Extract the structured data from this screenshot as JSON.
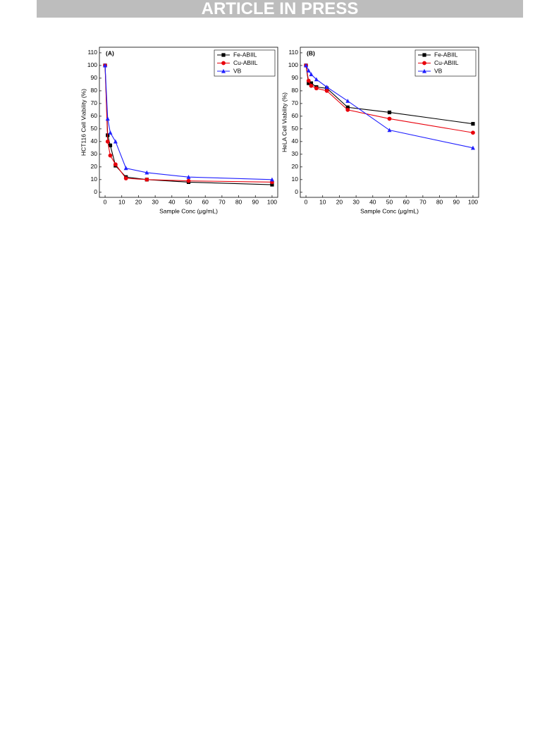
{
  "header": {
    "banner": "ARTICLE IN PRESS"
  },
  "chart_data": [
    {
      "type": "line",
      "panel_label": "(A)",
      "x_label": "Sample Conc (μg/mL)",
      "y_label": "HCT116 Cell Viability (%)",
      "x": [
        0,
        1.5625,
        3.125,
        6.25,
        12.5,
        25,
        50,
        100
      ],
      "series": [
        {
          "name": "Fe-ABIIL",
          "color": "#000000",
          "marker": "square",
          "values": [
            100,
            45,
            37,
            21,
            12,
            10,
            8,
            6
          ]
        },
        {
          "name": "Cu-ABIIL",
          "color": "#e8000b",
          "marker": "circle",
          "values": [
            100,
            40,
            29,
            22,
            11,
            10,
            9,
            8
          ]
        },
        {
          "name": "VB",
          "color": "#1f1fff",
          "marker": "triangle",
          "values": [
            100,
            58,
            47,
            40,
            19,
            15.5,
            12,
            10
          ]
        }
      ],
      "xlim": [
        -3.4,
        103.4
      ],
      "ylim": [
        -4,
        114.4
      ],
      "xticks": [
        0,
        10,
        20,
        30,
        40,
        50,
        60,
        70,
        80,
        90,
        100
      ],
      "yticks": [
        0,
        10,
        20,
        30,
        40,
        50,
        60,
        70,
        80,
        90,
        100,
        110
      ],
      "legend": "upper right"
    },
    {
      "type": "line",
      "panel_label": "(B)",
      "x_label": "Sample Conc (μg/mL)",
      "y_label": "HeLA Cell Viability (%)",
      "x": [
        0,
        1.5625,
        3.125,
        6.25,
        12.5,
        25,
        50,
        100
      ],
      "series": [
        {
          "name": "Fe-ABIIL",
          "color": "#000000",
          "marker": "square",
          "values": [
            100,
            86,
            86,
            83,
            82,
            67,
            63,
            54
          ]
        },
        {
          "name": "Cu-ABIIL",
          "color": "#e8000b",
          "marker": "circle",
          "values": [
            100,
            88,
            84,
            82,
            80,
            65,
            58,
            47
          ]
        },
        {
          "name": "VB",
          "color": "#1f1fff",
          "marker": "triangle",
          "values": [
            100,
            96,
            93,
            89,
            83,
            72,
            49,
            35
          ]
        }
      ],
      "xlim": [
        -3.4,
        103.4
      ],
      "ylim": [
        -4,
        114.4
      ],
      "xticks": [
        0,
        10,
        20,
        30,
        40,
        50,
        60,
        70,
        80,
        90,
        100
      ],
      "yticks": [
        0,
        10,
        20,
        30,
        40,
        50,
        60,
        70,
        80,
        90,
        100,
        110
      ],
      "legend": "upper right"
    }
  ]
}
